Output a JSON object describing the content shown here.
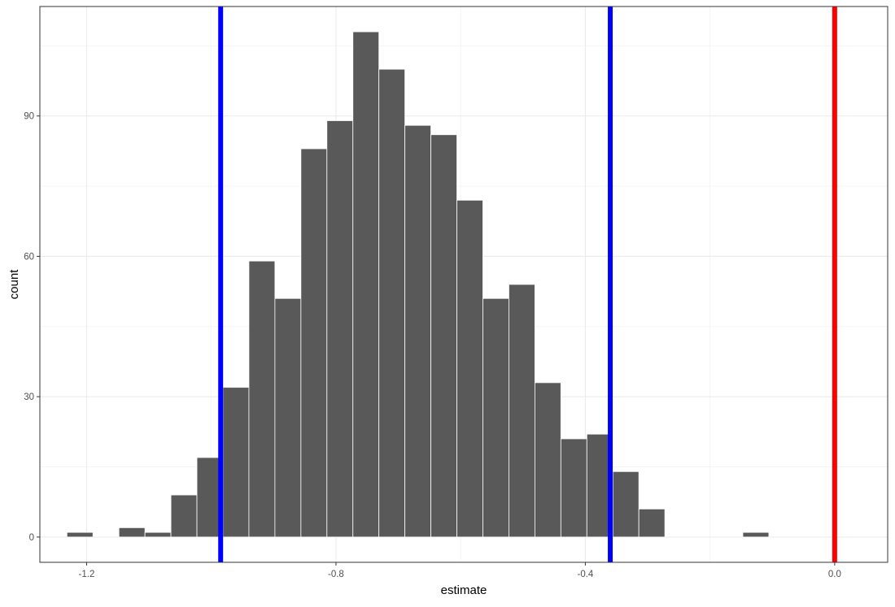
{
  "chart_data": {
    "type": "bar",
    "subtype": "histogram",
    "xlabel": "estimate",
    "ylabel": "count",
    "xlim": [
      -1.275,
      0.085
    ],
    "ylim": [
      -5.4,
      113.4
    ],
    "x_ticks": [
      -1.2,
      -0.8,
      -0.4,
      0.0
    ],
    "x_tick_labels": [
      "-1.2",
      "-0.8",
      "-0.4",
      "0.0"
    ],
    "y_ticks": [
      0,
      30,
      60,
      90
    ],
    "y_tick_labels": [
      "0",
      "30",
      "60",
      "90"
    ],
    "grid": true,
    "theme": "bw",
    "bar_fill": "#595959",
    "bar_outline": "#ffffff",
    "bin_width": 0.0417,
    "bins": [
      {
        "x": -1.2107,
        "count": 1
      },
      {
        "x": -1.169,
        "count": 0
      },
      {
        "x": -1.1273,
        "count": 2
      },
      {
        "x": -1.0856,
        "count": 1
      },
      {
        "x": -1.0439,
        "count": 9
      },
      {
        "x": -1.0022,
        "count": 17
      },
      {
        "x": -0.9605,
        "count": 32
      },
      {
        "x": -0.9188,
        "count": 59
      },
      {
        "x": -0.8771,
        "count": 51
      },
      {
        "x": -0.8354,
        "count": 83
      },
      {
        "x": -0.7937,
        "count": 89
      },
      {
        "x": -0.752,
        "count": 108
      },
      {
        "x": -0.7103,
        "count": 100
      },
      {
        "x": -0.6686,
        "count": 88
      },
      {
        "x": -0.6269,
        "count": 86
      },
      {
        "x": -0.5852,
        "count": 72
      },
      {
        "x": -0.5435,
        "count": 51
      },
      {
        "x": -0.5018,
        "count": 54
      },
      {
        "x": -0.4601,
        "count": 33
      },
      {
        "x": -0.4184,
        "count": 21
      },
      {
        "x": -0.3767,
        "count": 22
      },
      {
        "x": -0.335,
        "count": 14
      },
      {
        "x": -0.2933,
        "count": 6
      },
      {
        "x": -0.2516,
        "count": 0
      },
      {
        "x": -0.2099,
        "count": 0
      },
      {
        "x": -0.1682,
        "count": 0
      },
      {
        "x": -0.1265,
        "count": 1
      }
    ],
    "vlines": [
      {
        "x": -0.985,
        "color": "#0000ff"
      },
      {
        "x": -0.36,
        "color": "#0000ff"
      },
      {
        "x": 0.0,
        "color": "#ff0000"
      }
    ]
  }
}
